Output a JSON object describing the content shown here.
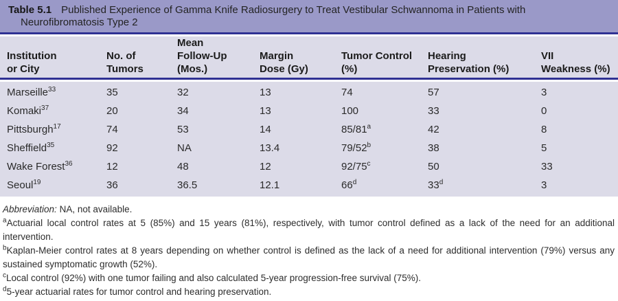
{
  "colors": {
    "title_bar": "#9a99c8",
    "rule": "#2f3193",
    "panel": "#dcdbe8"
  },
  "table": {
    "label": "Table 5.1",
    "title_line1": "Published Experience of Gamma Knife Radiosurgery to Treat Vestibular Schwannoma in Patients with",
    "title_line2": "Neurofibromatosis Type 2",
    "columns": [
      {
        "label": "Institution\nor City"
      },
      {
        "label": "No. of\nTumors"
      },
      {
        "label": "Mean\nFollow-Up\n(Mos.)"
      },
      {
        "label": "Margin\nDose (Gy)"
      },
      {
        "label": "Tumor Control\n(%)"
      },
      {
        "label": "Hearing\nPreservation (%)"
      },
      {
        "label": "VII\nWeakness (%)"
      }
    ],
    "rows": [
      {
        "institution": "Marseille",
        "ref": "33",
        "tumors": "35",
        "followup": "32",
        "dose": "13",
        "control": "74",
        "control_ref": "",
        "hearing": "57",
        "hearing_ref": "",
        "vii": "3"
      },
      {
        "institution": "Komaki",
        "ref": "37",
        "tumors": "20",
        "followup": "34",
        "dose": "13",
        "control": "100",
        "control_ref": "",
        "hearing": "33",
        "hearing_ref": "",
        "vii": "0"
      },
      {
        "institution": "Pittsburgh",
        "ref": "17",
        "tumors": "74",
        "followup": "53",
        "dose": "14",
        "control": "85/81",
        "control_ref": "a",
        "hearing": "42",
        "hearing_ref": "",
        "vii": "8"
      },
      {
        "institution": "Sheffield",
        "ref": "35",
        "tumors": "92",
        "followup": "NA",
        "dose": "13.4",
        "control": "79/52",
        "control_ref": "b",
        "hearing": "38",
        "hearing_ref": "",
        "vii": "5"
      },
      {
        "institution": "Wake Forest",
        "ref": "36",
        "tumors": "12",
        "followup": "48",
        "dose": "12",
        "control": "92/75",
        "control_ref": "c",
        "hearing": "50",
        "hearing_ref": "",
        "vii": "33"
      },
      {
        "institution": "Seoul",
        "ref": "19",
        "tumors": "36",
        "followup": "36.5",
        "dose": "12.1",
        "control": "66",
        "control_ref": "d",
        "hearing": "33",
        "hearing_ref": "d",
        "vii": "3"
      }
    ]
  },
  "notes": {
    "abbreviation_label": "Abbreviation:",
    "abbreviation_text": " NA, not available.",
    "footnotes": [
      {
        "marker": "a",
        "text": "Actuarial local control rates at 5 (85%) and 15 years (81%), respectively, with tumor control defined as a lack of the need for an additional intervention.",
        "justify": true
      },
      {
        "marker": "b",
        "text": "Kaplan-Meier control rates at 8 years depending on whether control is defined as the lack of a need for additional intervention (79%) versus any sustained symptomatic growth (52%).",
        "justify": true
      },
      {
        "marker": "c",
        "text": "Local control (92%) with one tumor failing and also calculated 5-year progression-free survival (75%).",
        "justify": false
      },
      {
        "marker": "d",
        "text": "5-year actuarial rates for tumor control and hearing preservation.",
        "justify": false
      }
    ]
  }
}
